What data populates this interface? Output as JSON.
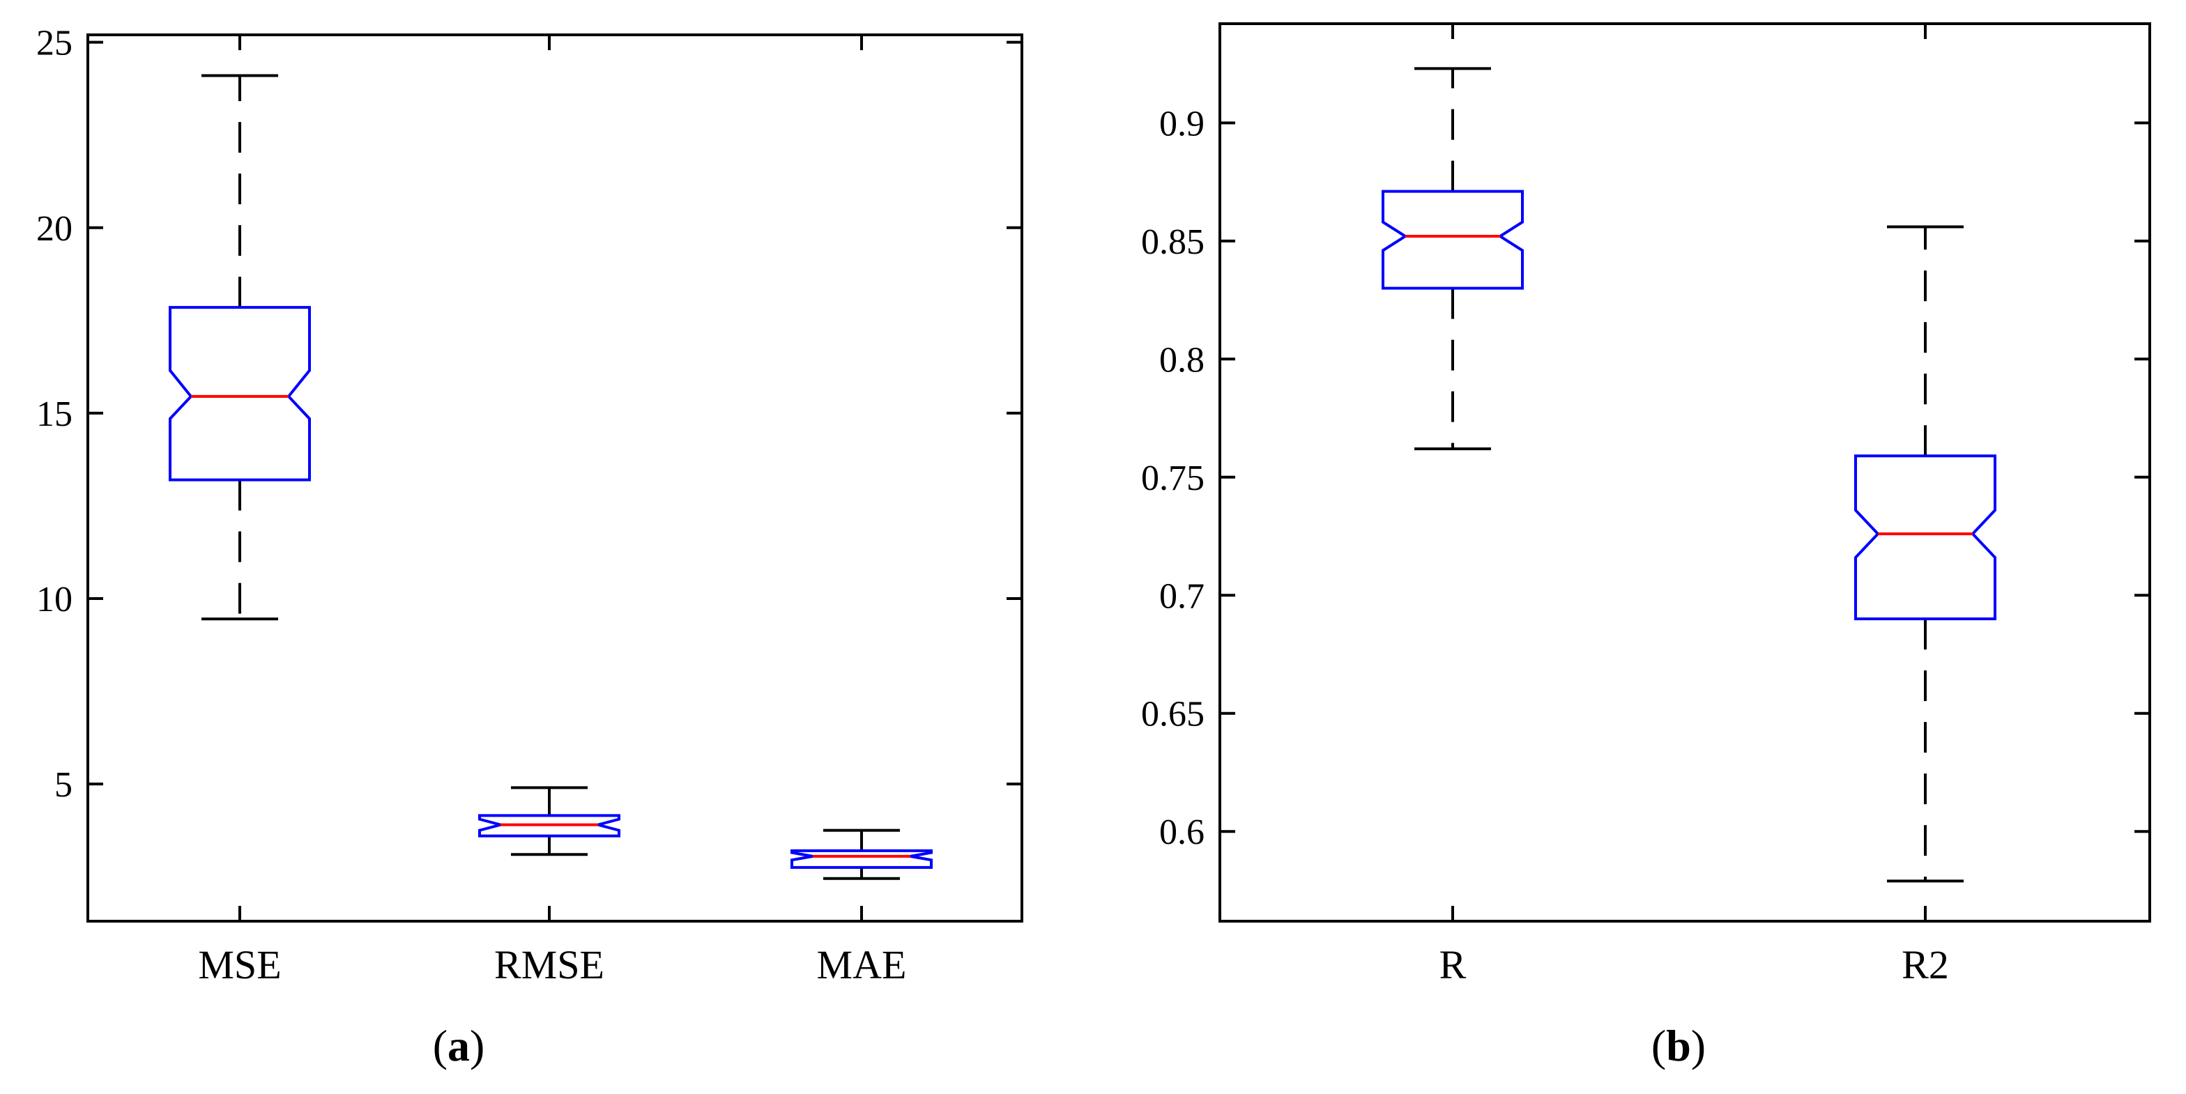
{
  "chart_data": [
    {
      "type": "box",
      "panel_label": "(a)",
      "panel_label_letter": "a",
      "categories": [
        "MSE",
        "RMSE",
        "MAE"
      ],
      "yticks": [
        "5",
        "10",
        "15",
        "20",
        "25"
      ],
      "ylim": [
        1.3,
        25.2
      ],
      "notched": true,
      "boxes": [
        {
          "name": "MSE",
          "whisker_low": 9.45,
          "q1": 13.2,
          "median": 15.45,
          "q3": 17.85,
          "whisker_high": 24.1,
          "notch_low": 14.85,
          "notch_high": 16.15
        },
        {
          "name": "RMSE",
          "whisker_low": 3.1,
          "q1": 3.6,
          "median": 3.9,
          "q3": 4.15,
          "whisker_high": 4.9,
          "notch_low": 3.75,
          "notch_high": 4.05
        },
        {
          "name": "MAE",
          "whisker_low": 2.45,
          "q1": 2.75,
          "median": 3.05,
          "q3": 3.2,
          "whisker_high": 3.75,
          "notch_low": 2.95,
          "notch_high": 3.15
        }
      ]
    },
    {
      "type": "box",
      "panel_label": "(b)",
      "panel_label_letter": "b",
      "categories": [
        "R",
        "R2"
      ],
      "yticks": [
        "0.6",
        "0.65",
        "0.7",
        "0.75",
        "0.8",
        "0.85",
        "0.9"
      ],
      "ylim": [
        0.562,
        0.942
      ],
      "notched": true,
      "boxes": [
        {
          "name": "R",
          "whisker_low": 0.762,
          "q1": 0.83,
          "median": 0.852,
          "q3": 0.871,
          "whisker_high": 0.923,
          "notch_low": 0.846,
          "notch_high": 0.858
        },
        {
          "name": "R2",
          "whisker_low": 0.579,
          "q1": 0.69,
          "median": 0.726,
          "q3": 0.759,
          "whisker_high": 0.856,
          "notch_low": 0.716,
          "notch_high": 0.736
        }
      ]
    }
  ],
  "colors": {
    "box": "#0000ff",
    "median": "#ff0000",
    "whisker": "#000000",
    "axis": "#000000"
  }
}
